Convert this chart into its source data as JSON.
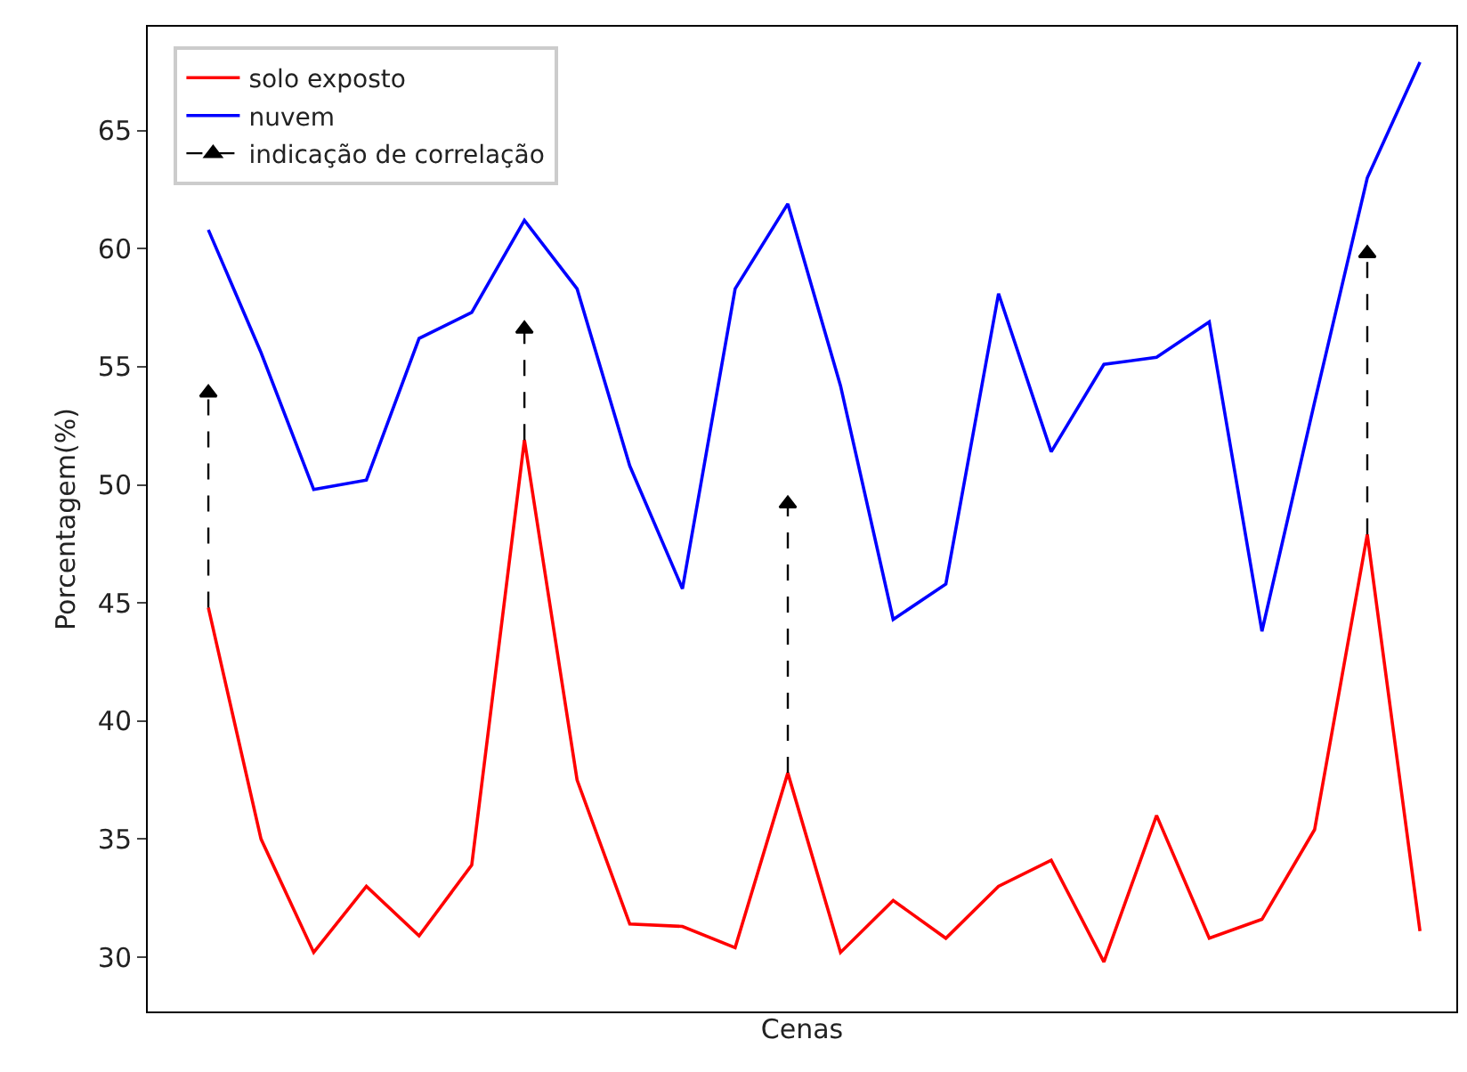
{
  "chart_data": {
    "type": "line",
    "xlabel": "Cenas",
    "ylabel": "Porcentagem(%)",
    "categories": [
      null,
      null,
      null,
      null,
      null,
      null,
      null,
      null,
      null,
      null,
      null,
      null,
      null,
      null,
      null,
      null,
      null,
      null,
      null,
      null,
      null,
      null,
      null,
      null
    ],
    "ylim": [
      27.7,
      69.4
    ],
    "yticks": [
      30,
      35,
      40,
      45,
      50,
      55,
      60,
      65
    ],
    "tick_labels": "y",
    "legend": "top left",
    "line_style": "solid",
    "marker": "none",
    "series": [
      {
        "name": "solo exposto",
        "color": "#ff0000",
        "values": [
          44.8,
          35.0,
          30.2,
          33.0,
          30.9,
          33.9,
          51.9,
          37.5,
          31.4,
          31.3,
          30.4,
          37.8,
          30.2,
          32.4,
          30.8,
          33.0,
          34.1,
          29.8,
          36.0,
          30.8,
          31.6,
          35.4,
          47.9,
          31.1
        ]
      },
      {
        "name": "nuvem",
        "color": "#0000ff",
        "values": [
          60.8,
          55.6,
          49.8,
          50.2,
          56.2,
          57.3,
          61.2,
          58.3,
          50.8,
          45.6,
          58.3,
          61.9,
          54.2,
          44.3,
          45.8,
          58.1,
          51.4,
          55.1,
          55.4,
          56.9,
          43.8,
          53.5,
          63.0,
          67.9
        ]
      },
      {
        "name": "indicação de correlação",
        "type": "scatter",
        "color": "#000000",
        "line_style": "dashed",
        "marker": "triangle",
        "values": [
          53.9,
          null,
          null,
          null,
          null,
          null,
          56.6,
          null,
          null,
          null,
          null,
          49.2,
          null,
          null,
          null,
          null,
          null,
          null,
          null,
          null,
          null,
          null,
          59.8,
          null
        ],
        "errors": [
          [
            44.8,
            53.9
          ],
          null,
          null,
          null,
          null,
          null,
          [
            51.9,
            56.6
          ],
          null,
          null,
          null,
          null,
          [
            37.8,
            49.2
          ],
          null,
          null,
          null,
          null,
          null,
          null,
          null,
          null,
          null,
          null,
          [
            47.9,
            59.8
          ],
          null
        ]
      }
    ]
  }
}
